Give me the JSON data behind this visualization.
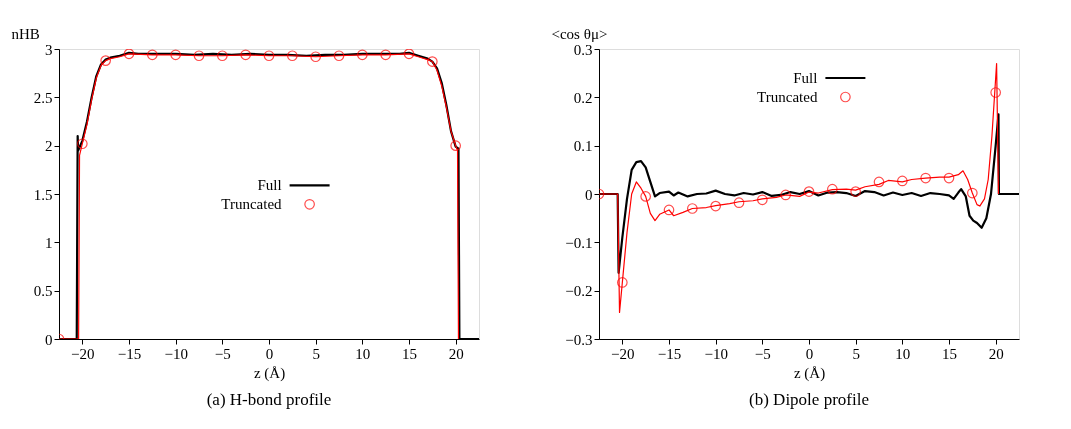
{
  "chart_data": [
    {
      "type": "line",
      "title": "(a) H-bond profile",
      "xlabel": "z (Å)",
      "ylabel": "nHB",
      "xlim": [
        -22.5,
        22.5
      ],
      "xticks": [
        {
          "value": -20,
          "label": "−20"
        },
        {
          "value": -15,
          "label": "−15"
        },
        {
          "value": -10,
          "label": "−10"
        },
        {
          "value": -5,
          "label": "−5"
        },
        0,
        5,
        10,
        15,
        20
      ],
      "ylim": [
        0,
        3
      ],
      "yticks": [
        0,
        0.5,
        1,
        1.5,
        2,
        2.5,
        3
      ],
      "grid": false,
      "legend": "center",
      "series": [
        {
          "name": "Full",
          "color": "#000000",
          "x": [
            -22.5,
            -20.6,
            -20.5,
            -20.45,
            -20,
            -19.5,
            -19,
            -18.5,
            -18,
            -17.5,
            -17,
            -16,
            -15,
            -14,
            -12,
            -10,
            -8,
            -6,
            -4,
            -2,
            0,
            2,
            4,
            6,
            8,
            10,
            12,
            14,
            15,
            16,
            17,
            17.5,
            18,
            18.5,
            19,
            19.5,
            20,
            20.3,
            20.4,
            22.5
          ],
          "values": [
            0,
            0,
            2.1,
            1.95,
            2.05,
            2.25,
            2.5,
            2.72,
            2.84,
            2.89,
            2.91,
            2.93,
            2.96,
            2.95,
            2.95,
            2.95,
            2.94,
            2.95,
            2.94,
            2.95,
            2.94,
            2.94,
            2.93,
            2.94,
            2.94,
            2.95,
            2.95,
            2.95,
            2.96,
            2.93,
            2.9,
            2.87,
            2.8,
            2.65,
            2.42,
            2.15,
            1.99,
            1.97,
            0,
            0
          ]
        },
        {
          "color": "#ff0000",
          "x": [
            -22.5,
            -20.4,
            -20.3,
            -20,
            -19.5,
            -19,
            -18.5,
            -18,
            -17.5,
            -17,
            -16,
            -15,
            -12.5,
            -10,
            -7.5,
            -5,
            -2.5,
            0,
            2.5,
            5,
            7.5,
            10,
            12.5,
            15,
            16,
            17,
            17.5,
            18,
            18.5,
            19,
            19.5,
            20,
            20.2,
            20.3
          ],
          "values": [
            0,
            0,
            1.9,
            2.02,
            2.22,
            2.48,
            2.7,
            2.83,
            2.88,
            2.9,
            2.92,
            2.95,
            2.94,
            2.94,
            2.93,
            2.93,
            2.94,
            2.93,
            2.93,
            2.92,
            2.93,
            2.94,
            2.94,
            2.95,
            2.92,
            2.89,
            2.87,
            2.78,
            2.62,
            2.4,
            2.15,
            2.0,
            1.95,
            0
          ]
        },
        {
          "name": "Truncated",
          "color": "#ff0000",
          "type": "scatter",
          "marker": "circle",
          "x": [
            -22.5,
            -20,
            -17.5,
            -15,
            -12.5,
            -10,
            -7.5,
            -5,
            -2.5,
            0,
            2.5,
            5,
            7.5,
            10,
            12.5,
            15,
            17.5,
            20
          ],
          "values": [
            0,
            2.02,
            2.88,
            2.95,
            2.94,
            2.94,
            2.93,
            2.93,
            2.94,
            2.93,
            2.93,
            2.92,
            2.93,
            2.94,
            2.94,
            2.95,
            2.87,
            2.0
          ]
        }
      ]
    },
    {
      "type": "line",
      "title": "(b) Dipole profile",
      "xlabel": "z (Å)",
      "ylabel": "<cos θμ>",
      "xlim": [
        -22.5,
        22.5
      ],
      "xticks": [
        {
          "value": -20,
          "label": "−20"
        },
        {
          "value": -15,
          "label": "−15"
        },
        {
          "value": -10,
          "label": "−10"
        },
        {
          "value": -5,
          "label": "−5"
        },
        0,
        5,
        10,
        15,
        20
      ],
      "ylim": [
        -0.3,
        0.3
      ],
      "yticks": [
        {
          "value": -0.3,
          "label": "−0.3"
        },
        {
          "value": -0.2,
          "label": "−0.2"
        },
        {
          "value": -0.1,
          "label": "−0.1"
        },
        0,
        0.1,
        0.2,
        0.3
      ],
      "grid": false,
      "legend": "top",
      "series": [
        {
          "name": "Full",
          "color": "#000000",
          "x": [
            -22.5,
            -20.5,
            -20.4,
            -20,
            -19.5,
            -19,
            -18.5,
            -18,
            -17.5,
            -17,
            -16.5,
            -16,
            -15,
            -14.5,
            -14,
            -13,
            -12,
            -11,
            -10,
            -9,
            -8,
            -7,
            -6,
            -5,
            -4,
            -3,
            -2,
            -1,
            0,
            1,
            2,
            3,
            4,
            5,
            6,
            7,
            8,
            9,
            10,
            11,
            12,
            13,
            14,
            15,
            15.5,
            16,
            16.3,
            16.8,
            17.2,
            17.6,
            18,
            18.5,
            19,
            19.5,
            20,
            20.3,
            20.35,
            22.5
          ],
          "values": [
            0,
            0,
            -0.163,
            -0.09,
            -0.01,
            0.05,
            0.066,
            0.068,
            0.055,
            0.025,
            -0.005,
            0.002,
            0.005,
            -0.003,
            0.003,
            -0.005,
            0,
            0.001,
            0.007,
            0,
            -0.003,
            0.002,
            -0.001,
            0.004,
            -0.004,
            -0.002,
            0.004,
            0,
            0.006,
            -0.003,
            0.003,
            0.004,
            0.002,
            -0.004,
            0.006,
            0.004,
            -0.003,
            0.003,
            -0.002,
            0.002,
            -0.004,
            0.002,
            0,
            -0.003,
            -0.01,
            0.003,
            0.01,
            -0.005,
            -0.045,
            -0.055,
            -0.06,
            -0.07,
            -0.05,
            0,
            0.1,
            0.165,
            0,
            0
          ]
        },
        {
          "color": "#ff0000",
          "x": [
            -22.5,
            -20.5,
            -20.3,
            -20,
            -19.5,
            -19,
            -18.5,
            -18,
            -17.5,
            -17,
            -16.5,
            -16,
            -15,
            -14.5,
            -13.5,
            -12.5,
            -11,
            -10,
            -8.5,
            -7.5,
            -6,
            -5,
            -3.5,
            -2.5,
            -1,
            0,
            1,
            2.5,
            4,
            5,
            6,
            7.5,
            8.5,
            10,
            11,
            12.5,
            14,
            15,
            16,
            16.5,
            17,
            17.5,
            18,
            18.3,
            18.8,
            19.2,
            19.6,
            20.1,
            20.3
          ],
          "values": [
            0,
            0,
            -0.245,
            -0.183,
            -0.08,
            0,
            0.025,
            0.012,
            -0.005,
            -0.04,
            -0.055,
            -0.042,
            -0.033,
            -0.045,
            -0.038,
            -0.03,
            -0.028,
            -0.024,
            -0.02,
            -0.016,
            -0.014,
            -0.01,
            -0.007,
            -0.002,
            -0.005,
            0.004,
            0.002,
            0.009,
            0.01,
            0.008,
            0.015,
            0.02,
            0.028,
            0.025,
            0.03,
            0.033,
            0.035,
            0.035,
            0.04,
            0.048,
            0.03,
            0.002,
            -0.022,
            -0.025,
            -0.01,
            0.03,
            0.12,
            0.27,
            0
          ]
        },
        {
          "name": "Truncated",
          "color": "#ff0000",
          "type": "scatter",
          "marker": "circle",
          "x": [
            -22.5,
            -20,
            -17.5,
            -15,
            -12.5,
            -10,
            -7.5,
            -5,
            -2.5,
            0,
            2.5,
            5,
            7.5,
            10,
            12.5,
            15,
            17.5,
            20
          ],
          "values": [
            0,
            -0.183,
            -0.005,
            -0.033,
            -0.03,
            -0.025,
            -0.018,
            -0.012,
            -0.002,
            0.005,
            0.01,
            0.005,
            0.025,
            0.027,
            0.033,
            0.033,
            0.002,
            0.21
          ]
        }
      ]
    }
  ]
}
